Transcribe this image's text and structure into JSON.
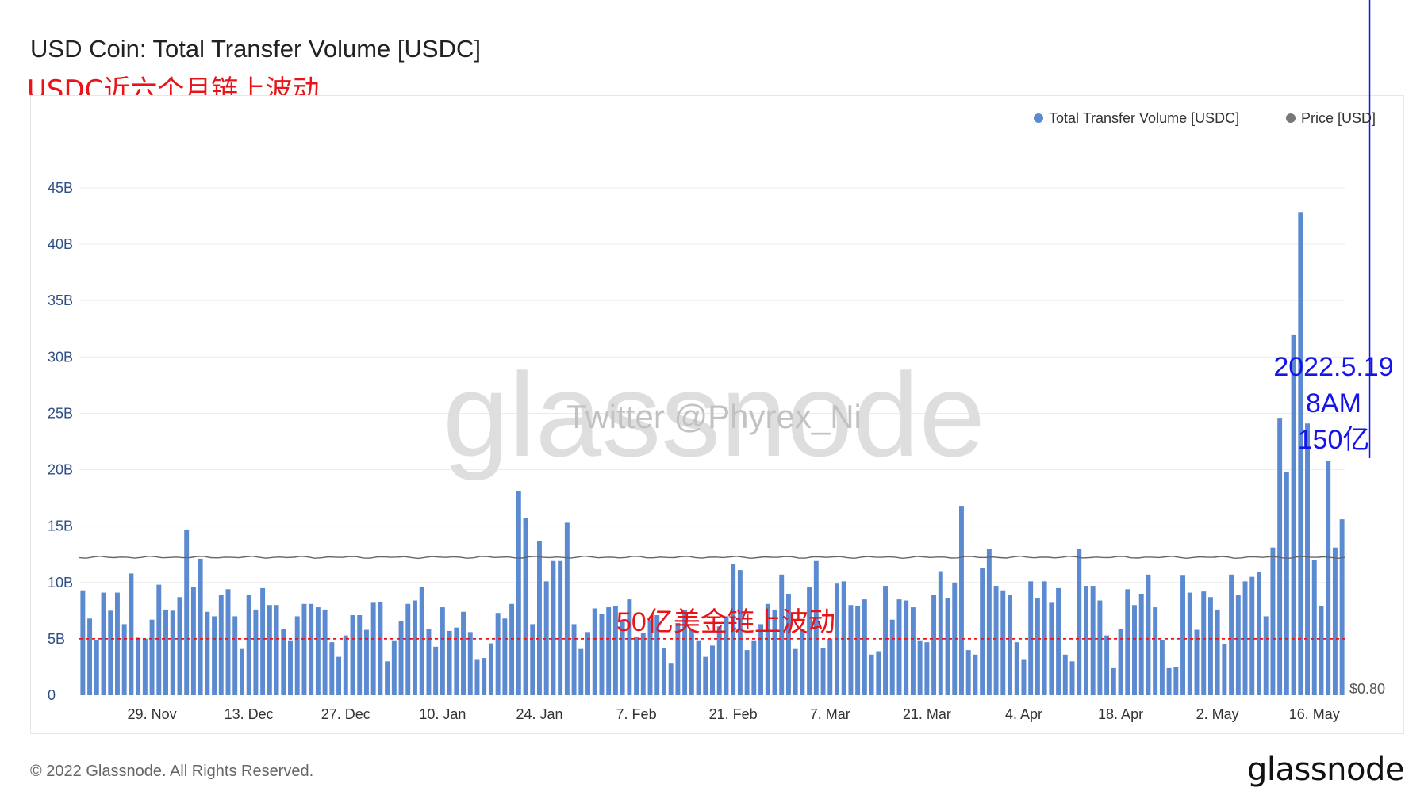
{
  "title": "USD Coin: Total Transfer Volume [USDC]",
  "subtitle": "USDC近六个月链上波动",
  "watermark": {
    "logo": "glassnode",
    "twitter": "Twitter @Phyrex_Ni"
  },
  "footer": {
    "copyright": "© 2022 Glassnode. All Rights Reserved.",
    "logo": "glassnode"
  },
  "colors": {
    "bar": "#5b8ad1",
    "price_line": "#666666",
    "threshold": "#e8141a",
    "annotation": "#1515e8"
  },
  "chart_data": {
    "type": "bar",
    "legend_placement": "top-right",
    "grid": true,
    "ylim": [
      0,
      45
    ],
    "y_ticks": [
      "0",
      "5B",
      "10B",
      "15B",
      "20B",
      "25B",
      "30B",
      "35B",
      "40B",
      "45B"
    ],
    "y_right_label": "$0.80",
    "x_ticks": [
      "29. Nov",
      "13. Dec",
      "27. Dec",
      "10. Jan",
      "24. Jan",
      "7. Feb",
      "21. Feb",
      "7. Mar",
      "21. Mar",
      "4. Apr",
      "18. Apr",
      "2. May",
      "16. May"
    ],
    "x_tick_index": [
      10,
      24,
      38,
      52,
      66,
      80,
      94,
      108,
      122,
      136,
      150,
      164,
      178
    ],
    "series": [
      {
        "name": "Total Transfer Volume [USDC]",
        "unit": "B",
        "values": [
          9.3,
          6.8,
          4.9,
          9.1,
          7.5,
          9.1,
          6.3,
          10.8,
          5.1,
          5.0,
          6.7,
          9.8,
          7.6,
          7.5,
          8.7,
          14.7,
          9.6,
          12.1,
          7.4,
          7.0,
          8.9,
          9.4,
          7.0,
          4.1,
          8.9,
          7.6,
          9.5,
          8.0,
          8.0,
          5.9,
          4.8,
          7.0,
          8.1,
          8.1,
          7.8,
          7.6,
          4.7,
          3.4,
          5.3,
          7.1,
          7.1,
          5.8,
          8.2,
          8.3,
          3.0,
          4.8,
          6.6,
          8.1,
          8.4,
          9.6,
          5.9,
          4.3,
          7.8,
          5.7,
          6.0,
          7.4,
          5.6,
          3.2,
          3.3,
          4.6,
          7.3,
          6.8,
          8.1,
          18.1,
          15.7,
          6.3,
          13.7,
          10.1,
          11.9,
          11.9,
          15.3,
          6.3,
          4.1,
          5.6,
          7.7,
          7.2,
          7.8,
          7.9,
          6.6,
          8.5,
          5.2,
          5.5,
          6.7,
          7.1,
          4.2,
          2.8,
          6.4,
          7.6,
          5.9,
          4.8,
          3.4,
          4.4,
          6.1,
          7.0,
          11.6,
          11.1,
          4.0,
          4.8,
          6.3,
          8.1,
          7.6,
          10.7,
          9.0,
          4.1,
          5.9,
          9.6,
          11.9,
          4.2,
          5.0,
          9.9,
          10.1,
          8.0,
          7.9,
          8.5,
          3.6,
          3.9,
          9.7,
          6.7,
          8.5,
          8.4,
          7.8,
          4.8,
          4.7,
          8.9,
          11.0,
          8.6,
          10.0,
          16.8,
          4.0,
          3.6,
          11.3,
          13.0,
          9.7,
          9.3,
          8.9,
          4.7,
          3.2,
          10.1,
          8.6,
          10.1,
          8.2,
          9.5,
          3.6,
          3.0,
          13.0,
          9.7,
          9.7,
          8.4,
          5.3,
          2.4,
          5.9,
          9.4,
          8.0,
          9.0,
          10.7,
          7.8,
          4.9,
          2.4,
          2.5,
          10.6,
          9.1,
          5.8,
          9.2,
          8.7,
          7.6,
          4.5,
          10.7,
          8.9,
          10.1,
          10.5,
          10.9,
          7.0,
          13.1,
          24.6,
          19.8,
          32.0,
          42.8,
          24.1,
          12.0,
          7.9,
          20.8,
          13.1,
          15.6
        ]
      },
      {
        "name": "Price [USD]",
        "unit": "USD",
        "values": []
      }
    ],
    "annotations": [
      {
        "text": "50亿美金链上波动",
        "y": 5
      },
      {
        "lines": [
          "2022.5.19",
          "8AM",
          "150亿"
        ],
        "target_index": 186
      }
    ]
  }
}
